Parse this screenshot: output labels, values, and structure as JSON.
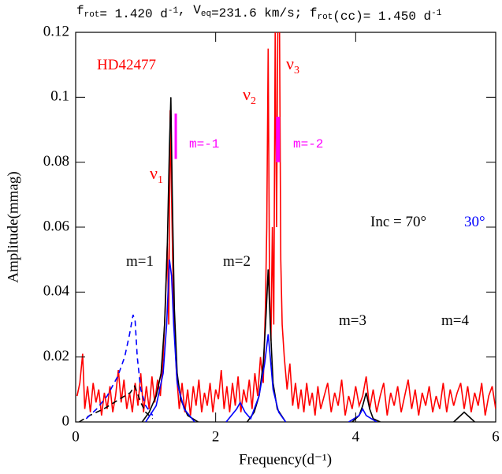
{
  "chart_data": {
    "type": "line",
    "title": [
      {
        "text": "f"
      },
      {
        "text": "rot",
        "shift": "sub"
      },
      {
        "text": "= 1.420 d"
      },
      {
        "text": "-1",
        "shift": "sup"
      },
      {
        "text": ", V"
      },
      {
        "text": "eq",
        "shift": "sub"
      },
      {
        "text": "=231.6 km/s;  f"
      },
      {
        "text": "rot",
        "shift": "sub"
      },
      {
        "text": "(cc)= 1.450 d"
      },
      {
        "text": "-1",
        "shift": "sup"
      }
    ],
    "x_label": "Frequency(d⁻¹)",
    "y_label": "Amplitude(mmag)",
    "xlim": [
      0,
      6
    ],
    "ylim": [
      0,
      0.12
    ],
    "xticks": [
      0,
      2,
      4,
      6
    ],
    "yticks": [
      0,
      0.02,
      0.04,
      0.06,
      0.08,
      0.1,
      0.12
    ],
    "series": [
      {
        "color": "#ff0000",
        "dash": false,
        "x": [
          0.02,
          0.06,
          0.1,
          0.13,
          0.17,
          0.21,
          0.25,
          0.29,
          0.33,
          0.37,
          0.41,
          0.45,
          0.49,
          0.53,
          0.57,
          0.61,
          0.65,
          0.69,
          0.73,
          0.77,
          0.81,
          0.85,
          0.89,
          0.93,
          0.97,
          1.01,
          1.05,
          1.09,
          1.13,
          1.17,
          1.21,
          1.25,
          1.28,
          1.31,
          1.33,
          1.35,
          1.37,
          1.39,
          1.41,
          1.44,
          1.48,
          1.52,
          1.56,
          1.6,
          1.64,
          1.68,
          1.72,
          1.76,
          1.8,
          1.84,
          1.88,
          1.92,
          1.96,
          2.0,
          2.04,
          2.08,
          2.12,
          2.16,
          2.2,
          2.24,
          2.28,
          2.32,
          2.36,
          2.4,
          2.44,
          2.48,
          2.52,
          2.56,
          2.6,
          2.64,
          2.68,
          2.71,
          2.73,
          2.75,
          2.77,
          2.79,
          2.81,
          2.83,
          2.85,
          2.87,
          2.89,
          2.91,
          2.93,
          2.95,
          2.98,
          3.02,
          3.06,
          3.1,
          3.14,
          3.18,
          3.22,
          3.26,
          3.3,
          3.34,
          3.38,
          3.42,
          3.46,
          3.5,
          3.55,
          3.6,
          3.65,
          3.7,
          3.75,
          3.8,
          3.85,
          3.9,
          3.95,
          4.0,
          4.05,
          4.1,
          4.15,
          4.2,
          4.25,
          4.3,
          4.35,
          4.4,
          4.45,
          4.5,
          4.55,
          4.6,
          4.65,
          4.7,
          4.75,
          4.8,
          4.85,
          4.9,
          4.95,
          5.0,
          5.05,
          5.1,
          5.15,
          5.2,
          5.25,
          5.3,
          5.35,
          5.4,
          5.45,
          5.5,
          5.55,
          5.6,
          5.65,
          5.7,
          5.75,
          5.8,
          5.85,
          5.9,
          5.95,
          6.0
        ],
        "values": [
          0.008,
          0.012,
          0.021,
          0.004,
          0.011,
          0.003,
          0.012,
          0.006,
          0.01,
          0.002,
          0.009,
          0.004,
          0.011,
          0.003,
          0.008,
          0.016,
          0.006,
          0.013,
          0.004,
          0.009,
          0.003,
          0.012,
          0.005,
          0.015,
          0.003,
          0.011,
          0.004,
          0.014,
          0.006,
          0.013,
          0.008,
          0.02,
          0.035,
          0.055,
          0.03,
          0.096,
          0.07,
          0.045,
          0.03,
          0.015,
          0.004,
          0.012,
          0.003,
          0.01,
          0.002,
          0.011,
          0.005,
          0.013,
          0.003,
          0.009,
          0.005,
          0.012,
          0.003,
          0.01,
          0.007,
          0.016,
          0.004,
          0.011,
          0.003,
          0.012,
          0.005,
          0.014,
          0.003,
          0.01,
          0.006,
          0.013,
          0.004,
          0.015,
          0.008,
          0.02,
          0.012,
          0.035,
          0.06,
          0.115,
          0.04,
          0.025,
          0.06,
          0.03,
          0.12,
          0.06,
          0.13,
          0.13,
          0.05,
          0.03,
          0.02,
          0.01,
          0.018,
          0.005,
          0.012,
          0.004,
          0.01,
          0.003,
          0.012,
          0.005,
          0.009,
          0.002,
          0.011,
          0.004,
          0.008,
          0.012,
          0.003,
          0.009,
          0.005,
          0.013,
          0.002,
          0.008,
          0.004,
          0.011,
          0.005,
          0.008,
          0.014,
          0.004,
          0.01,
          0.003,
          0.008,
          0.012,
          0.002,
          0.009,
          0.005,
          0.011,
          0.003,
          0.008,
          0.013,
          0.004,
          0.01,
          0.002,
          0.009,
          0.005,
          0.011,
          0.003,
          0.008,
          0.004,
          0.012,
          0.003,
          0.01,
          0.005,
          0.009,
          0.012,
          0.004,
          0.011,
          0.003,
          0.009,
          0.005,
          0.012,
          0.002,
          0.008,
          0.011,
          0.004
        ]
      },
      {
        "color": "#000000",
        "dash": false,
        "x": [
          0.95,
          1.05,
          1.15,
          1.22,
          1.27,
          1.31,
          1.34,
          1.36,
          1.38,
          1.41,
          1.45,
          1.5,
          1.6,
          1.75,
          2.0,
          2.45,
          2.55,
          2.62,
          2.68,
          2.72,
          2.75,
          2.78,
          2.82,
          2.88,
          3.0,
          3.5,
          3.95,
          4.05,
          4.1,
          4.15,
          4.2,
          4.25,
          4.35,
          5.0,
          5.4,
          5.5,
          5.55,
          5.6,
          5.7
        ],
        "values": [
          0,
          0.003,
          0.008,
          0.015,
          0.03,
          0.055,
          0.085,
          0.1,
          0.07,
          0.035,
          0.015,
          0.007,
          0.002,
          0,
          null,
          0,
          0.003,
          0.008,
          0.018,
          0.033,
          0.047,
          0.03,
          0.012,
          0.004,
          0,
          null,
          0,
          0.002,
          0.005,
          0.009,
          0.004,
          0.001,
          0,
          null,
          0,
          0.002,
          0.003,
          0.002,
          0
        ]
      },
      {
        "color": "#000000",
        "dash": true,
        "x": [
          0.05,
          0.2,
          0.4,
          0.55,
          0.7,
          0.78,
          0.84,
          0.88,
          0.93,
          1.0,
          1.1
        ],
        "values": [
          0,
          0.002,
          0.004,
          0.006,
          0.008,
          0.009,
          0.011,
          0.009,
          0.006,
          0.003,
          0.001
        ]
      },
      {
        "color": "#0000ff",
        "dash": false,
        "x": [
          1.0,
          1.15,
          1.25,
          1.3,
          1.34,
          1.37,
          1.4,
          1.45,
          1.55,
          1.7,
          2.0,
          2.15,
          2.3,
          2.35,
          2.42,
          2.5,
          2.62,
          2.7,
          2.75,
          2.78,
          2.82,
          2.9,
          3.0,
          3.5,
          3.9,
          4.05,
          4.1,
          4.15,
          4.3
        ],
        "values": [
          0,
          0.005,
          0.015,
          0.03,
          0.05,
          0.045,
          0.03,
          0.012,
          0.004,
          0,
          null,
          0,
          0.004,
          0.006,
          0.003,
          0.001,
          0.008,
          0.018,
          0.027,
          0.02,
          0.01,
          0.003,
          0,
          null,
          0,
          0.002,
          0.004,
          0.002,
          0
        ]
      },
      {
        "color": "#0000ff",
        "dash": true,
        "x": [
          0.15,
          0.3,
          0.45,
          0.6,
          0.7,
          0.77,
          0.82,
          0.85,
          0.88,
          0.93,
          1.0,
          1.1
        ],
        "values": [
          0.001,
          0.004,
          0.008,
          0.014,
          0.02,
          0.027,
          0.033,
          0.031,
          0.02,
          0.01,
          0.005,
          0.002
        ]
      }
    ],
    "markers": [
      {
        "color": "#ff00ff",
        "x": 1.43,
        "y": [
          0.081,
          0.095
        ]
      },
      {
        "color": "#ff00ff",
        "x": 2.89,
        "y": [
          0.08,
          0.094
        ]
      }
    ],
    "annotations": [
      {
        "text": "HD42477",
        "color": "#ff0000"
      },
      {
        "text": "ν",
        "sub": "1",
        "color": "#ff0000"
      },
      {
        "text": "ν",
        "sub": "2",
        "color": "#ff0000"
      },
      {
        "text": "ν",
        "sub": "3",
        "color": "#ff0000"
      },
      {
        "text": "m=-1",
        "color": "#ff00ff"
      },
      {
        "text": "m=-2",
        "color": "#ff00ff"
      },
      {
        "text": "Inc = 70°",
        "color": "#000000"
      },
      {
        "text": "30°",
        "color": "#0000ff"
      },
      {
        "text": "m=1",
        "color": "#000000"
      },
      {
        "text": "m=2",
        "color": "#000000"
      },
      {
        "text": "m=3",
        "color": "#000000"
      },
      {
        "text": "m=4",
        "color": "#000000"
      }
    ]
  }
}
